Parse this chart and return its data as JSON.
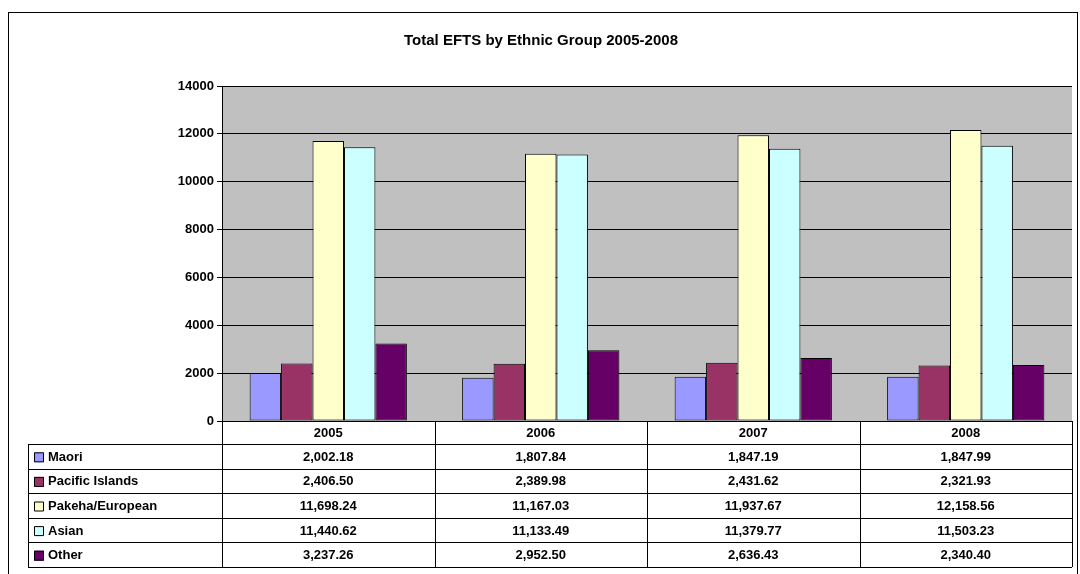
{
  "chart_data": {
    "type": "bar",
    "title": "Total EFTS by Ethnic Group 2005-2008",
    "categories": [
      "2005",
      "2006",
      "2007",
      "2008"
    ],
    "series": [
      {
        "name": "Maori",
        "color": "#9999ff",
        "values": [
          2002.18,
          1807.84,
          1847.19,
          1847.99
        ],
        "value_labels": [
          "2,002.18",
          "1,807.84",
          "1,847.19",
          "1,847.99"
        ]
      },
      {
        "name": "Pacific Islands",
        "color": "#993366",
        "values": [
          2406.5,
          2389.98,
          2431.62,
          2321.93
        ],
        "value_labels": [
          "2,406.50",
          "2,389.98",
          "2,431.62",
          "2,321.93"
        ]
      },
      {
        "name": "Pakeha/European",
        "color": "#ffffcc",
        "values": [
          11698.24,
          11167.03,
          11937.67,
          12158.56
        ],
        "value_labels": [
          "11,698.24",
          "11,167.03",
          "11,937.67",
          "12,158.56"
        ]
      },
      {
        "name": "Asian",
        "color": "#ccffff",
        "values": [
          11440.62,
          11133.49,
          11379.77,
          11503.23
        ],
        "value_labels": [
          "11,440.62",
          "11,133.49",
          "11,379.77",
          "11,503.23"
        ]
      },
      {
        "name": "Other",
        "color": "#660066",
        "values": [
          3237.26,
          2952.5,
          2636.43,
          2340.4
        ],
        "value_labels": [
          "3,237.26",
          "2,952.50",
          "2,636.43",
          "2,340.40"
        ]
      }
    ],
    "ylim": [
      0,
      14000
    ],
    "yticks": [
      0,
      2000,
      4000,
      6000,
      8000,
      10000,
      12000,
      14000
    ],
    "grid": "y",
    "legend": "bottom"
  }
}
